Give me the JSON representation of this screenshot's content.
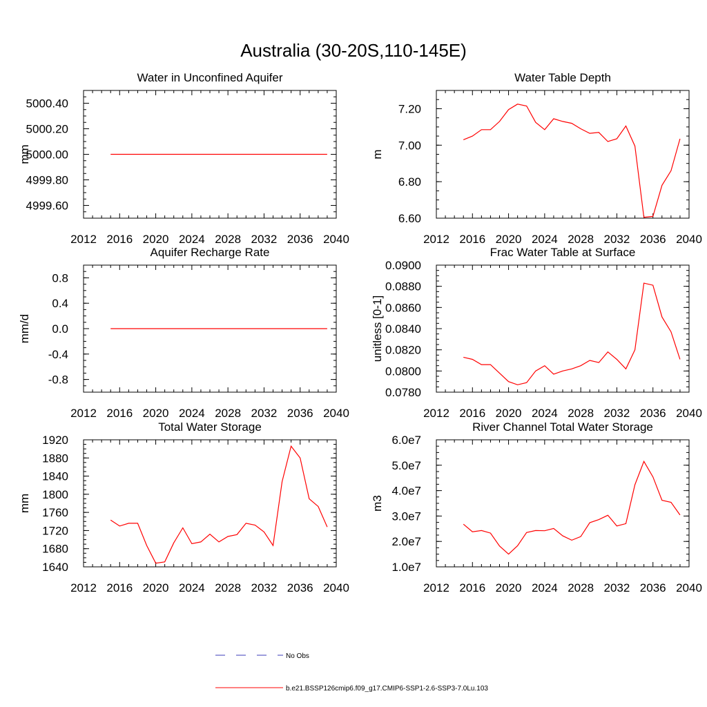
{
  "figure_title": "Australia (30-20S,110-145E)",
  "legend": {
    "obs_label": "No Obs",
    "model_label": "b.e21.BSSP126cmip6.f09_g17.CMIP6-SSP1-2.6-SSP3-7.0Lu.103",
    "obs_color": "#3b3bb8",
    "model_color": "#ff0000"
  },
  "chart_data": [
    {
      "type": "line",
      "title": "Water in Unconfined Aquifer",
      "ylabel": "mm",
      "xlim": [
        2012,
        2040
      ],
      "ylim": [
        4999.5,
        5000.5
      ],
      "xticks": [
        "2012",
        "2016",
        "2020",
        "2024",
        "2028",
        "2032",
        "2036",
        "2040"
      ],
      "yticks": [
        {
          "v": 4999.6,
          "label": "4999.60"
        },
        {
          "v": 4999.8,
          "label": "4999.80"
        },
        {
          "v": 5000.0,
          "label": "5000.00"
        },
        {
          "v": 5000.2,
          "label": "5000.20"
        },
        {
          "v": 5000.4,
          "label": "5000.40"
        }
      ],
      "series": [
        {
          "color": "#ff0000",
          "x": [
            2015,
            2039
          ],
          "y": [
            5000.0,
            5000.0
          ]
        }
      ]
    },
    {
      "type": "line",
      "title": "Water Table Depth",
      "ylabel": "m",
      "xlim": [
        2012,
        2040
      ],
      "ylim": [
        6.6,
        7.3
      ],
      "xticks": [
        "2012",
        "2016",
        "2020",
        "2024",
        "2028",
        "2032",
        "2036",
        "2040"
      ],
      "yticks": [
        {
          "v": 6.6,
          "label": "6.60"
        },
        {
          "v": 6.8,
          "label": "6.80"
        },
        {
          "v": 7.0,
          "label": "7.00"
        },
        {
          "v": 7.2,
          "label": "7.20"
        }
      ],
      "series": [
        {
          "color": "#ff0000",
          "x": [
            2015,
            2016,
            2017,
            2018,
            2019,
            2020,
            2021,
            2022,
            2023,
            2024,
            2025,
            2026,
            2027,
            2028,
            2029,
            2030,
            2031,
            2032,
            2033,
            2034,
            2035,
            2036,
            2037,
            2038,
            2039
          ],
          "y": [
            7.03,
            7.05,
            7.085,
            7.085,
            7.13,
            7.195,
            7.225,
            7.215,
            7.125,
            7.085,
            7.145,
            7.13,
            7.12,
            7.09,
            7.065,
            7.07,
            7.02,
            7.035,
            7.105,
            6.995,
            6.605,
            6.61,
            6.78,
            6.86,
            7.035
          ]
        }
      ]
    },
    {
      "type": "line",
      "title": "Aquifer Recharge Rate",
      "ylabel": "mm/d",
      "xlim": [
        2012,
        2040
      ],
      "ylim": [
        -1.0,
        1.0
      ],
      "xticks": [
        "2012",
        "2016",
        "2020",
        "2024",
        "2028",
        "2032",
        "2036",
        "2040"
      ],
      "yticks": [
        {
          "v": -0.8,
          "label": "-0.8"
        },
        {
          "v": -0.4,
          "label": "-0.4"
        },
        {
          "v": 0.0,
          "label": "0.0"
        },
        {
          "v": 0.4,
          "label": "0.4"
        },
        {
          "v": 0.8,
          "label": "0.8"
        }
      ],
      "series": [
        {
          "color": "#ff0000",
          "x": [
            2015,
            2039
          ],
          "y": [
            0.0,
            0.0
          ]
        }
      ]
    },
    {
      "type": "line",
      "title": "Frac Water Table at Surface",
      "ylabel": "unitless [0-1]",
      "xlim": [
        2012,
        2040
      ],
      "ylim": [
        0.078,
        0.09
      ],
      "xticks": [
        "2012",
        "2016",
        "2020",
        "2024",
        "2028",
        "2032",
        "2036",
        "2040"
      ],
      "yticks": [
        {
          "v": 0.078,
          "label": "0.0780"
        },
        {
          "v": 0.08,
          "label": "0.0800"
        },
        {
          "v": 0.082,
          "label": "0.0820"
        },
        {
          "v": 0.084,
          "label": "0.0840"
        },
        {
          "v": 0.086,
          "label": "0.0860"
        },
        {
          "v": 0.088,
          "label": "0.0880"
        },
        {
          "v": 0.09,
          "label": "0.0900"
        }
      ],
      "series": [
        {
          "color": "#ff0000",
          "x": [
            2015,
            2016,
            2017,
            2018,
            2019,
            2020,
            2021,
            2022,
            2023,
            2024,
            2025,
            2026,
            2027,
            2028,
            2029,
            2030,
            2031,
            2032,
            2033,
            2034,
            2035,
            2036,
            2037,
            2038,
            2039
          ],
          "y": [
            0.0813,
            0.0811,
            0.0806,
            0.0806,
            0.0798,
            0.079,
            0.0787,
            0.0789,
            0.08,
            0.0805,
            0.0797,
            0.08,
            0.0802,
            0.0805,
            0.081,
            0.0808,
            0.0818,
            0.0811,
            0.0802,
            0.082,
            0.0883,
            0.0881,
            0.0851,
            0.0837,
            0.0811
          ]
        }
      ]
    },
    {
      "type": "line",
      "title": "Total Water Storage",
      "ylabel": "mm",
      "xlim": [
        2012,
        2040
      ],
      "ylim": [
        1640,
        1920
      ],
      "xticks": [
        "2012",
        "2016",
        "2020",
        "2024",
        "2028",
        "2032",
        "2036",
        "2040"
      ],
      "yticks": [
        {
          "v": 1640,
          "label": "1640"
        },
        {
          "v": 1680,
          "label": "1680"
        },
        {
          "v": 1720,
          "label": "1720"
        },
        {
          "v": 1760,
          "label": "1760"
        },
        {
          "v": 1800,
          "label": "1800"
        },
        {
          "v": 1840,
          "label": "1840"
        },
        {
          "v": 1880,
          "label": "1880"
        },
        {
          "v": 1920,
          "label": "1920"
        }
      ],
      "series": [
        {
          "color": "#ff0000",
          "x": [
            2015,
            2016,
            2017,
            2018,
            2019,
            2020,
            2021,
            2022,
            2023,
            2024,
            2025,
            2026,
            2027,
            2028,
            2029,
            2030,
            2031,
            2032,
            2033,
            2034,
            2035,
            2036,
            2037,
            2038,
            2039
          ],
          "y": [
            1743,
            1730,
            1736,
            1736,
            1687,
            1648,
            1651,
            1693,
            1726,
            1691,
            1695,
            1712,
            1695,
            1707,
            1711,
            1736,
            1732,
            1717,
            1687,
            1828,
            1906,
            1880,
            1790,
            1773,
            1728
          ]
        }
      ]
    },
    {
      "type": "line",
      "title": "River Channel Total Water Storage",
      "ylabel": "m3",
      "xlim": [
        2012,
        2040
      ],
      "ylim": [
        10000000,
        60000000
      ],
      "xticks": [
        "2012",
        "2016",
        "2020",
        "2024",
        "2028",
        "2032",
        "2036",
        "2040"
      ],
      "yticks": [
        {
          "v": 10000000,
          "label": "1.0e7"
        },
        {
          "v": 20000000,
          "label": "2.0e7"
        },
        {
          "v": 30000000,
          "label": "3.0e7"
        },
        {
          "v": 40000000,
          "label": "4.0e7"
        },
        {
          "v": 50000000,
          "label": "5.0e7"
        },
        {
          "v": 60000000,
          "label": "6.0e7"
        }
      ],
      "series": [
        {
          "color": "#ff0000",
          "x": [
            2015,
            2016,
            2017,
            2018,
            2019,
            2020,
            2021,
            2022,
            2023,
            2024,
            2025,
            2026,
            2027,
            2028,
            2029,
            2030,
            2031,
            2032,
            2033,
            2034,
            2035,
            2036,
            2037,
            2038,
            2039
          ],
          "y": [
            26800000,
            23800000,
            24300000,
            23300000,
            18200000,
            15000000,
            18300000,
            23500000,
            24300000,
            24200000,
            25100000,
            22200000,
            20500000,
            21900000,
            27400000,
            28600000,
            30300000,
            26100000,
            27000000,
            42300000,
            51500000,
            45400000,
            36200000,
            35400000,
            30400000
          ]
        }
      ]
    }
  ]
}
